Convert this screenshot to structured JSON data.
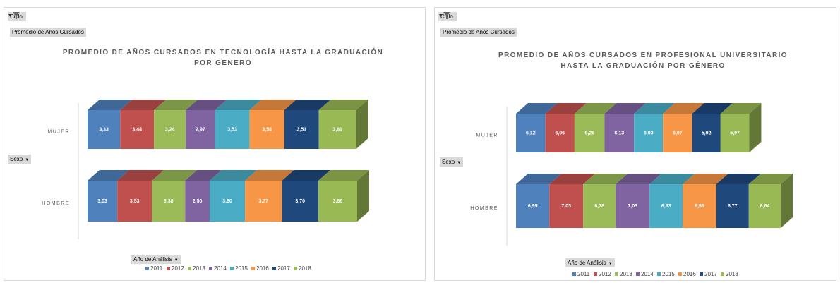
{
  "chart_data": [
    {
      "type": "bar3d_stacked",
      "filter_button": "Ciclo",
      "value_field": "Promedio de Años Cursados",
      "axis_field": "Sexo",
      "legend_field": "Año de Análisis",
      "title": "PROMEDIO DE AÑOS CURSADOS EN TECNOLOGÍA HASTA LA GRADUACIÓN POR GÉNERO",
      "categories": [
        "MUJER",
        "HOMBRE"
      ],
      "series": [
        {
          "name": "2011",
          "color": "#4f81bd",
          "values": [
            3.33,
            3.03
          ],
          "value_labels": [
            "3,33",
            "3,03"
          ]
        },
        {
          "name": "2012",
          "color": "#c0504d",
          "values": [
            3.44,
            3.53
          ],
          "value_labels": [
            "3,44",
            "3,53"
          ]
        },
        {
          "name": "2013",
          "color": "#9bbb59",
          "values": [
            3.24,
            3.38
          ],
          "value_labels": [
            "3,24",
            "3,38"
          ]
        },
        {
          "name": "2014",
          "color": "#8064a2",
          "values": [
            2.97,
            2.5
          ],
          "value_labels": [
            "2,97",
            "2,50"
          ]
        },
        {
          "name": "2015",
          "color": "#4bacc6",
          "values": [
            3.53,
            3.6
          ],
          "value_labels": [
            "3,53",
            "3,60"
          ]
        },
        {
          "name": "2016",
          "color": "#f79646",
          "values": [
            3.54,
            3.77
          ],
          "value_labels": [
            "3,54",
            "3,77"
          ]
        },
        {
          "name": "2017",
          "color": "#1f497d",
          "values": [
            3.51,
            3.7
          ],
          "value_labels": [
            "3,51",
            "3,70"
          ]
        },
        {
          "name": "2018",
          "color": "#98b954",
          "values": [
            3.81,
            3.96
          ],
          "value_labels": [
            "3,81",
            "3,96"
          ]
        }
      ]
    },
    {
      "type": "bar3d_stacked",
      "filter_button": "Ciclo",
      "value_field": "Promedio de Años Cursados",
      "axis_field": "Sexo",
      "legend_field": "Año de Análisis",
      "title": "PROMEDIO DE AÑOS CURSADOS EN PROFESIONAL UNIVERSITARIO HASTA LA GRADUACIÓN POR GÉNERO",
      "categories": [
        "MUJER",
        "HOMBRE"
      ],
      "series": [
        {
          "name": "2011",
          "color": "#4f81bd",
          "values": [
            6.12,
            6.95
          ],
          "value_labels": [
            "6,12",
            "6,95"
          ]
        },
        {
          "name": "2012",
          "color": "#c0504d",
          "values": [
            6.06,
            7.03
          ],
          "value_labels": [
            "6,06",
            "7,03"
          ]
        },
        {
          "name": "2013",
          "color": "#9bbb59",
          "values": [
            6.26,
            6.78
          ],
          "value_labels": [
            "6,26",
            "6,78"
          ]
        },
        {
          "name": "2014",
          "color": "#8064a2",
          "values": [
            6.13,
            7.03
          ],
          "value_labels": [
            "6,13",
            "7,03"
          ]
        },
        {
          "name": "2015",
          "color": "#4bacc6",
          "values": [
            6.03,
            6.93
          ],
          "value_labels": [
            "6,03",
            "6,93"
          ]
        },
        {
          "name": "2016",
          "color": "#f79646",
          "values": [
            6.07,
            6.98
          ],
          "value_labels": [
            "6,07",
            "6,98"
          ]
        },
        {
          "name": "2017",
          "color": "#1f497d",
          "values": [
            5.92,
            6.77
          ],
          "value_labels": [
            "5,92",
            "6,77"
          ]
        },
        {
          "name": "2018",
          "color": "#98b954",
          "values": [
            5.97,
            6.64
          ],
          "value_labels": [
            "5,97",
            "6,64"
          ]
        }
      ]
    }
  ]
}
